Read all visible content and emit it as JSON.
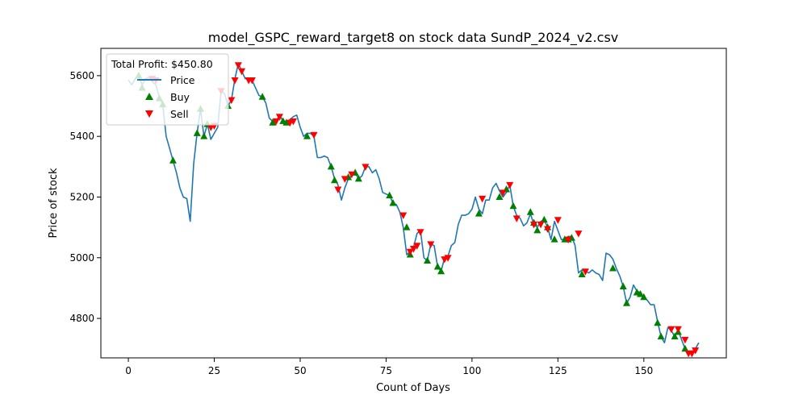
{
  "chart_data": {
    "type": "line",
    "title": "model_GSPC_reward_target8 on stock data SundP_2024_v2.csv",
    "xlabel": "Count of Days",
    "ylabel": "Price of stock",
    "xlim": [
      -8,
      174
    ],
    "ylim": [
      4670,
      5690
    ],
    "xticks": [
      0,
      25,
      50,
      75,
      100,
      125,
      150
    ],
    "yticks": [
      4800,
      5000,
      5200,
      5400,
      5600
    ],
    "grid": false,
    "legend_placement": "top-left",
    "annotation": "Total Profit: $450.80",
    "colors": {
      "price": "#1f77b4",
      "buy": "#008000",
      "sell": "#ff0000"
    },
    "series": [
      {
        "name": "Price",
        "type": "line",
        "x": [
          0,
          1,
          2,
          3,
          4,
          5,
          6,
          7,
          8,
          9,
          10,
          11,
          12,
          13,
          14,
          15,
          16,
          17,
          18,
          19,
          20,
          21,
          22,
          23,
          24,
          25,
          26,
          27,
          28,
          29,
          30,
          31,
          32,
          33,
          34,
          35,
          36,
          37,
          38,
          39,
          40,
          41,
          42,
          43,
          44,
          45,
          46,
          47,
          48,
          49,
          50,
          51,
          52,
          53,
          54,
          55,
          56,
          57,
          58,
          59,
          60,
          61,
          62,
          63,
          64,
          65,
          66,
          67,
          68,
          69,
          70,
          71,
          72,
          73,
          74,
          75,
          76,
          77,
          78,
          79,
          80,
          81,
          82,
          83,
          84,
          85,
          86,
          87,
          88,
          89,
          90,
          91,
          92,
          93,
          94,
          95,
          96,
          97,
          98,
          99,
          100,
          101,
          102,
          103,
          104,
          105,
          106,
          107,
          108,
          109,
          110,
          111,
          112,
          113,
          114,
          115,
          116,
          117,
          118,
          119,
          120,
          121,
          122,
          123,
          124,
          125,
          126,
          127,
          128,
          129,
          130,
          131,
          132,
          133,
          134,
          135,
          136,
          137,
          138,
          139,
          140,
          141,
          142,
          143,
          144,
          145,
          146,
          147,
          148,
          149,
          150,
          151,
          152,
          153,
          154,
          155,
          156,
          157,
          158,
          159,
          160,
          161,
          162,
          163,
          164,
          165,
          166
        ],
        "y": [
          5585,
          5570,
          5590,
          5600,
          5570,
          5590,
          5595,
          5580,
          5570,
          5530,
          5505,
          5400,
          5360,
          5320,
          5280,
          5230,
          5200,
          5195,
          5120,
          5310,
          5410,
          5490,
          5400,
          5440,
          5390,
          5410,
          5430,
          5550,
          5540,
          5500,
          5520,
          5590,
          5640,
          5615,
          5590,
          5590,
          5585,
          5560,
          5535,
          5530,
          5510,
          5460,
          5450,
          5450,
          5470,
          5450,
          5450,
          5455,
          5465,
          5470,
          5430,
          5400,
          5410,
          5410,
          5400,
          5330,
          5330,
          5335,
          5330,
          5300,
          5260,
          5240,
          5190,
          5230,
          5260,
          5270,
          5280,
          5260,
          5270,
          5300,
          5300,
          5280,
          5290,
          5260,
          5215,
          5210,
          5205,
          5180,
          5175,
          5150,
          5100,
          5010,
          5020,
          5035,
          5080,
          5090,
          5000,
          4990,
          5045,
          5040,
          4970,
          4955,
          5000,
          5005,
          5040,
          5050,
          5110,
          5140,
          5140,
          5145,
          5160,
          5200,
          5160,
          5145,
          5190,
          5190,
          5230,
          5245,
          5220,
          5200,
          5215,
          5240,
          5170,
          5140,
          5130,
          5105,
          5115,
          5145,
          5110,
          5100,
          5120,
          5125,
          5100,
          5060,
          5120,
          5090,
          5060,
          5060,
          5070,
          5070,
          5040,
          4950,
          4960,
          4955,
          4950,
          4960,
          4950,
          4945,
          4925,
          5015,
          5010,
          4995,
          4965,
          4940,
          4905,
          4850,
          4870,
          4910,
          4890,
          4885,
          4870,
          4860,
          4845,
          4845,
          4790,
          4740,
          4720,
          4770,
          4760,
          4740,
          4760,
          4730,
          4700,
          4690,
          4690,
          4700,
          4720
        ],
        "color": "#1f77b4"
      },
      {
        "name": "Buy",
        "type": "scatter",
        "x": [
          3,
          4,
          9,
          10,
          13,
          20,
          21,
          22,
          23,
          29,
          39,
          42,
          45,
          46,
          52,
          59,
          60,
          64,
          66,
          67,
          76,
          77,
          81,
          82,
          87,
          90,
          91,
          102,
          108,
          110,
          112,
          117,
          118,
          119,
          121,
          122,
          124,
          127,
          128,
          129,
          132,
          141,
          144,
          145,
          148,
          149,
          150,
          154,
          155,
          159,
          160,
          162
        ],
        "y": [
          5600,
          5560,
          5525,
          5505,
          5320,
          5410,
          5490,
          5400,
          5440,
          5500,
          5530,
          5445,
          5450,
          5445,
          5400,
          5300,
          5255,
          5265,
          5280,
          5260,
          5205,
          5180,
          5100,
          5010,
          4990,
          4970,
          4955,
          5145,
          5200,
          5225,
          5170,
          5150,
          5115,
          5090,
          5125,
          5100,
          5060,
          5060,
          5060,
          5065,
          4945,
          4965,
          4905,
          4850,
          4885,
          4880,
          4870,
          4785,
          4740,
          4740,
          4755,
          4700
        ]
      },
      {
        "name": "Sell",
        "type": "scatter",
        "x": [
          7,
          8,
          24,
          25,
          27,
          30,
          31,
          32,
          33,
          35,
          36,
          43,
          44,
          47,
          48,
          54,
          61,
          63,
          65,
          69,
          80,
          82,
          83,
          84,
          85,
          88,
          92,
          93,
          103,
          109,
          111,
          113,
          118,
          120,
          122,
          125,
          128,
          131,
          133,
          158,
          160,
          162,
          163,
          164,
          165
        ],
        "y": [
          5590,
          5585,
          5430,
          5435,
          5550,
          5520,
          5585,
          5635,
          5615,
          5585,
          5585,
          5450,
          5465,
          5445,
          5450,
          5405,
          5225,
          5260,
          5275,
          5300,
          5140,
          5020,
          5030,
          5040,
          5085,
          5045,
          4995,
          5000,
          5195,
          5215,
          5240,
          5130,
          5110,
          5110,
          5095,
          5125,
          5060,
          5080,
          4955,
          4765,
          4765,
          4730,
          4685,
          4685,
          4695
        ]
      }
    ]
  }
}
